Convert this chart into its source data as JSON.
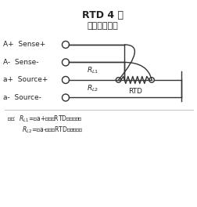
{
  "title_line1": "RTD 4 线",
  "title_line2": "（精度最高）",
  "labels": [
    "A+  Sense+",
    "A-  Sense-",
    "a+  Source+",
    "a-  Source-"
  ],
  "note_line1": "注意:  Rₗ₁=从a+端子到RTD的导线电阻",
  "note_line2": "        Rₗ₂=从a-端子到RTD的导线电阻",
  "bg_color": "#f0f0f0",
  "line_color": "#333333",
  "text_color": "#222222"
}
